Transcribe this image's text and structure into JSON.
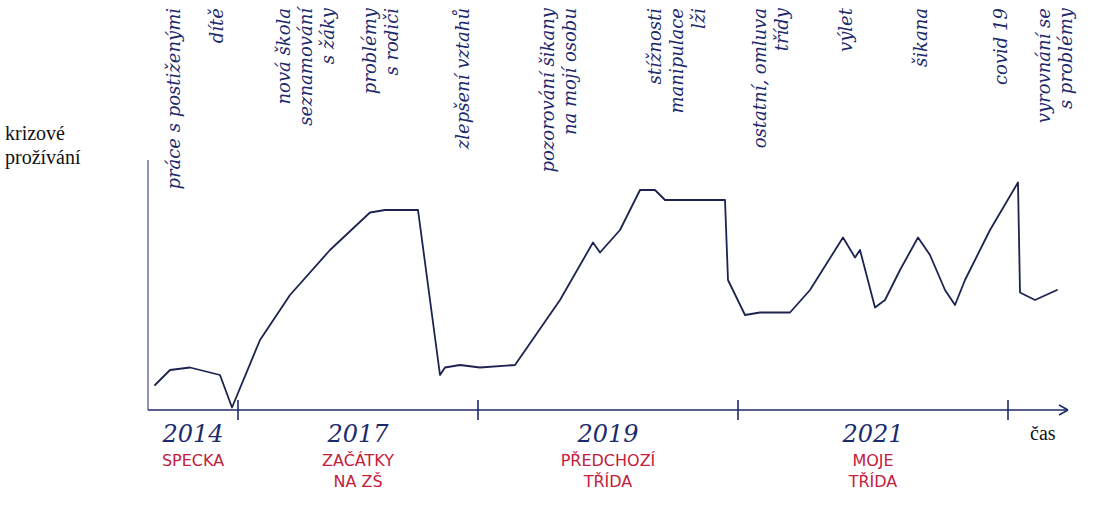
{
  "chart_data": {
    "type": "line",
    "y_label": "krizové prožívání",
    "x_label": "čas",
    "xlim": [
      0,
      92
    ],
    "ylim": [
      0,
      10
    ],
    "tick_labels": false,
    "grid": false,
    "color": "#1c2350",
    "x": [
      0.7,
      2.2,
      4.2,
      6.2,
      7.2,
      8.4,
      11.2,
      14.2,
      18.2,
      22.2,
      23.7,
      25.2,
      27,
      28.2,
      29.2,
      29.7,
      31.2,
      33.2,
      36.7,
      41.2,
      44.5,
      45.2,
      47.2,
      49.2,
      50.7,
      51.7,
      53.2,
      55.2,
      57.7,
      58,
      59.7,
      61.2,
      64.2,
      66.2,
      69.5,
      70.7,
      71.2,
      72.7,
      73.7,
      75.2,
      77,
      78.2,
      79.7,
      80.7,
      81.7,
      84.2,
      87,
      87.2,
      88.7,
      90.9
    ],
    "values": [
      1.0,
      1.6,
      1.7,
      1.5,
      1.4,
      0.1,
      2.8,
      4.6,
      6.4,
      7.9,
      8.0,
      8.0,
      8.0,
      4.4,
      1.4,
      1.7,
      1.8,
      1.7,
      1.8,
      4.4,
      6.7,
      6.3,
      7.2,
      8.8,
      8.8,
      8.4,
      8.4,
      8.4,
      8.4,
      5.2,
      3.8,
      3.9,
      3.9,
      4.8,
      6.9,
      6.1,
      6.4,
      4.1,
      4.4,
      5.6,
      6.9,
      6.2,
      4.8,
      4.2,
      5.2,
      7.2,
      9.1,
      4.7,
      4.4,
      4.8
    ],
    "periods": [
      {
        "year": "2014",
        "name": [
          "SPECKA"
        ],
        "start": 0,
        "end": 9
      },
      {
        "year": "2017",
        "name": [
          "ZAČÁTKY",
          "NA ZŠ"
        ],
        "start": 9,
        "end": 33
      },
      {
        "year": "2019",
        "name": [
          "PŘEDCHOZÍ",
          "TŘÍDA"
        ],
        "start": 33,
        "end": 59
      },
      {
        "year": "2021",
        "name": [
          "MOJE",
          "TŘÍDA"
        ],
        "start": 59,
        "end": 86
      }
    ],
    "annotations": [
      {
        "x": 2.5,
        "text": [
          "práce s postiženými"
        ]
      },
      {
        "x": 6.8,
        "text": [
          "dítě"
        ]
      },
      {
        "x": 15.7,
        "text": [
          "nová škola",
          "seznamování",
          "s žáky"
        ]
      },
      {
        "x": 23.2,
        "text": [
          "problémy",
          "s rodiči"
        ]
      },
      {
        "x": 31.4,
        "text": [
          "zlepšení vztahů"
        ]
      },
      {
        "x": 41,
        "text": [
          "pozorování šikany",
          "na mojí osobu"
        ]
      },
      {
        "x": 52.8,
        "text": [
          "stížnosti",
          "manipulace",
          "lži"
        ]
      },
      {
        "x": 62.2,
        "text": [
          "ostatní, omluva",
          "třídy"
        ]
      },
      {
        "x": 69.7,
        "text": [
          "výlet"
        ]
      },
      {
        "x": 77.2,
        "text": [
          "šikana"
        ]
      },
      {
        "x": 85.2,
        "text": [
          "covid 19"
        ]
      },
      {
        "x": 90.6,
        "text": [
          "vyrovnání se",
          "s problémy"
        ]
      }
    ]
  }
}
